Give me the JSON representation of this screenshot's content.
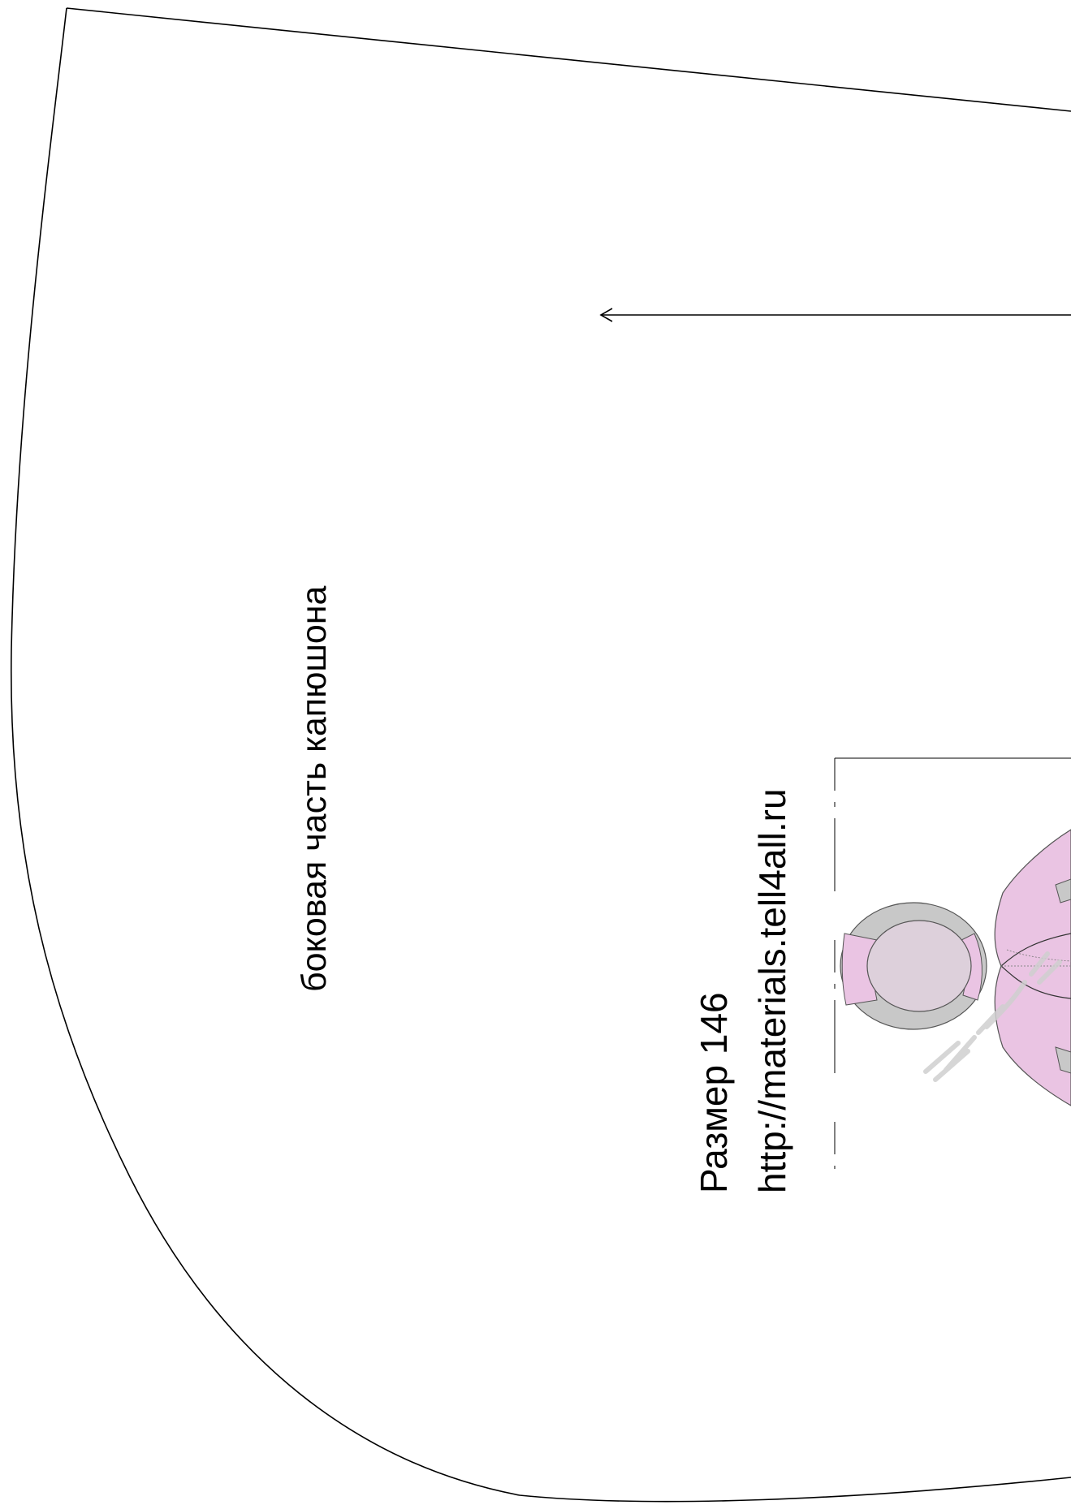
{
  "pattern": {
    "piece_name": "боковая часть капюшона",
    "size_text": "Размер 146",
    "source_url": "http://materials.tell4all.ru"
  },
  "colors": {
    "outline": "#000000",
    "garment_pink": "#eac4e3",
    "garment_gray": "#c8c8c8",
    "background": "#ffffff",
    "watermark": "#cfcfcf"
  }
}
